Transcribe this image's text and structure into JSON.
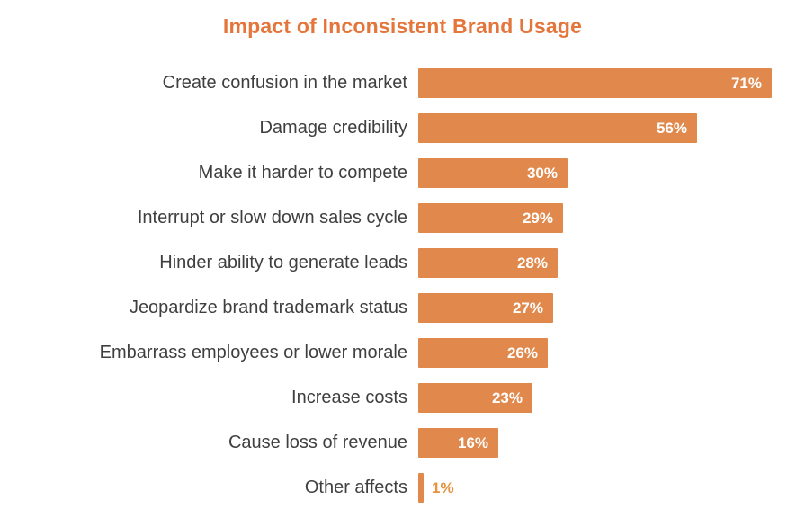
{
  "chart_data": {
    "type": "bar",
    "orientation": "horizontal",
    "title": "Impact of Inconsistent Brand Usage",
    "categories": [
      "Create confusion in the market",
      "Damage credibility",
      "Make it harder to compete",
      "Interrupt or slow down sales cycle",
      "Hinder ability to generate leads",
      "Jeopardize brand trademark status",
      "Embarrass employees or lower morale",
      "Increase costs",
      "Cause loss of revenue",
      "Other affects"
    ],
    "values": [
      71,
      56,
      30,
      29,
      28,
      27,
      26,
      23,
      16,
      1
    ],
    "value_labels": [
      "71%",
      "56%",
      "30%",
      "29%",
      "28%",
      "27%",
      "26%",
      "23%",
      "16%",
      "1%"
    ],
    "xlim": [
      0,
      100
    ],
    "grid": false,
    "legend": "none",
    "colors": {
      "bar": "#e1894c",
      "title": "#e4763c",
      "category_label": "#3f3f3f",
      "value_label_inside": "#ffffff",
      "value_label_outside": "#e8913f"
    },
    "value_label_outside_threshold": 5
  }
}
